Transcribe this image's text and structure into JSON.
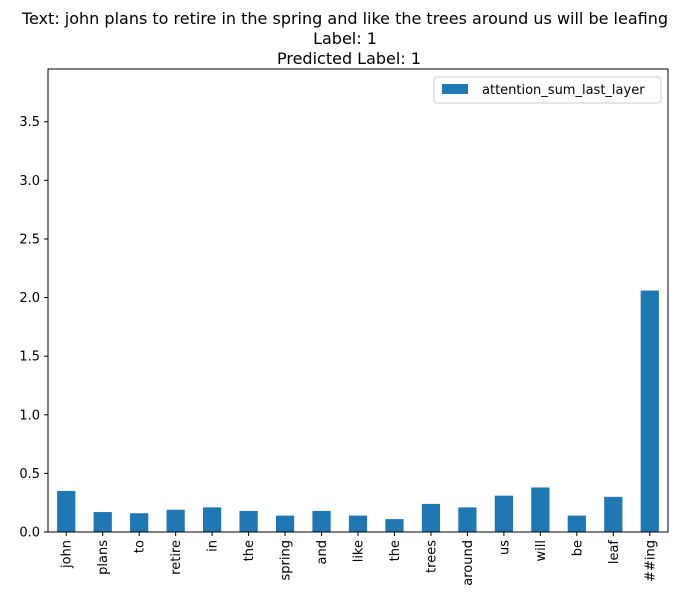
{
  "chart_data": {
    "type": "bar",
    "title_lines": [
      "Text: john plans to retire in the spring and like the trees around us will be leafing",
      "Label: 1",
      "Predicted Label: 1"
    ],
    "xlabel": "",
    "ylabel": "",
    "categories": [
      "john",
      "plans",
      "to",
      "retire",
      "in",
      "the",
      "spring",
      "and",
      "like",
      "the",
      "trees",
      "around",
      "us",
      "will",
      "be",
      "leaf",
      "##ing"
    ],
    "series": [
      {
        "name": "attention_sum_last_layer",
        "color": "#1f77b4",
        "values": [
          0.35,
          0.17,
          0.16,
          0.19,
          0.21,
          0.18,
          0.14,
          0.18,
          0.14,
          0.11,
          0.24,
          0.21,
          0.31,
          0.38,
          0.14,
          0.3,
          2.06
        ]
      }
    ],
    "ylim": [
      0,
      3.95
    ],
    "yticks": [
      "0.0",
      "0.5",
      "1.0",
      "1.5",
      "2.0",
      "2.5",
      "3.0",
      "3.5"
    ],
    "grid": false,
    "legend_position": "top-right"
  }
}
